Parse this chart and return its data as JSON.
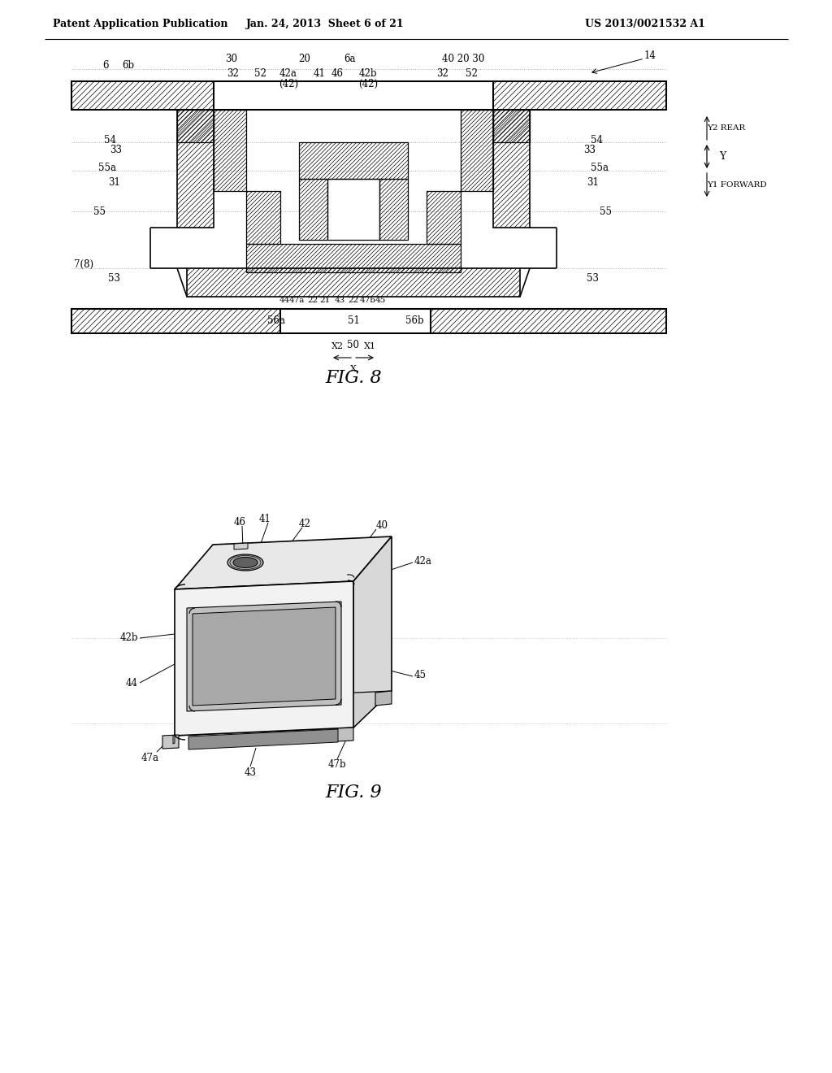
{
  "bg": "#ffffff",
  "lc": "#000000",
  "header_l": "Patent Application Publication",
  "header_m": "Jan. 24, 2013  Sheet 6 of 21",
  "header_r": "US 2013/0021532 A1",
  "fig8": "FIG. 8",
  "fig9": "FIG. 9"
}
